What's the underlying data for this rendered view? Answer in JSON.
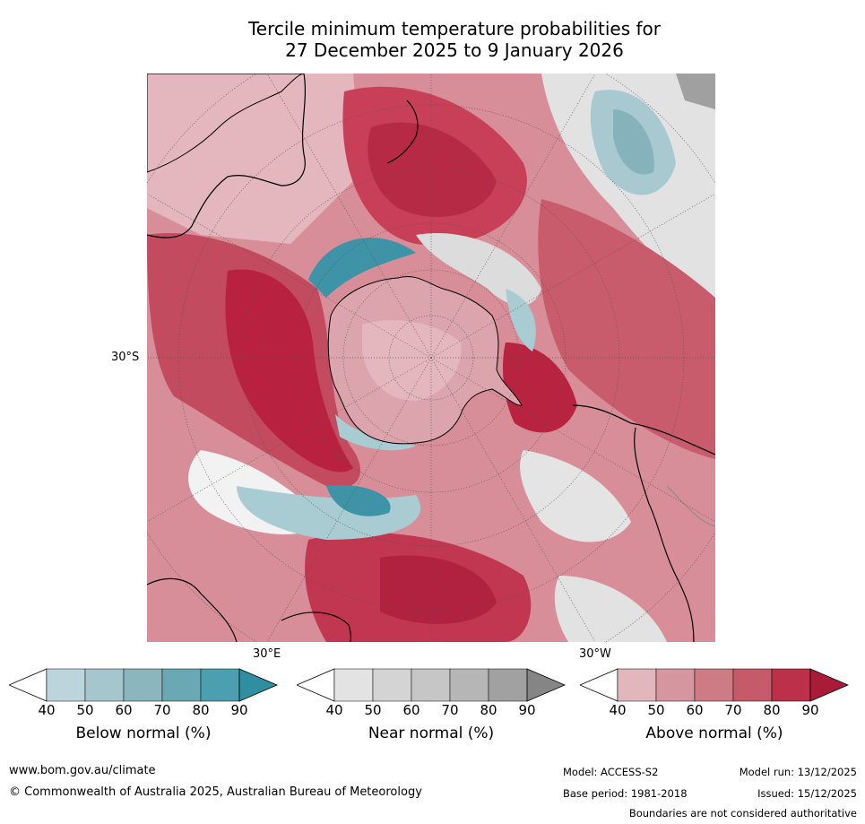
{
  "title": {
    "line1": "Tercile minimum temperature probabilities for",
    "line2": "27 December 2025 to 9 January 2026"
  },
  "map": {
    "projection": "south-polar-stereographic",
    "labels": {
      "lat_30s": "30°S",
      "lon_30e": "30°E",
      "lon_30w": "30°W"
    }
  },
  "colorbars": [
    {
      "key": "below",
      "title": "Below normal (%)",
      "ticks": [
        "40",
        "50",
        "60",
        "70",
        "80",
        "90"
      ],
      "colors": [
        "#bcd5dc",
        "#a5c6cd",
        "#8bb6be",
        "#6aa9b4",
        "#4b9fae",
        "#2e8fa0"
      ]
    },
    {
      "key": "near",
      "title": "Near normal (%)",
      "ticks": [
        "40",
        "50",
        "60",
        "70",
        "80",
        "90"
      ],
      "colors": [
        "#e3e3e3",
        "#d4d4d4",
        "#c6c6c6",
        "#b6b6b6",
        "#a1a1a1",
        "#858585"
      ]
    },
    {
      "key": "above",
      "title": "Above normal (%)",
      "ticks": [
        "40",
        "50",
        "60",
        "70",
        "80",
        "90"
      ],
      "colors": [
        "#e1b7bd",
        "#d6969f",
        "#cd7c86",
        "#c55b6a",
        "#bc3149",
        "#a91b39"
      ]
    }
  ],
  "footer": {
    "website": "www.bom.gov.au/climate",
    "copyright": "© Commonwealth of Australia 2025, Australian Bureau of Meteorology",
    "model": "Model: ACCESS-S2",
    "base_period": "Base period: 1981-2018",
    "model_run": "Model run: 13/12/2025",
    "issued": "Issued: 15/12/2025",
    "disclaimer": "Boundaries are not considered authoritative"
  }
}
